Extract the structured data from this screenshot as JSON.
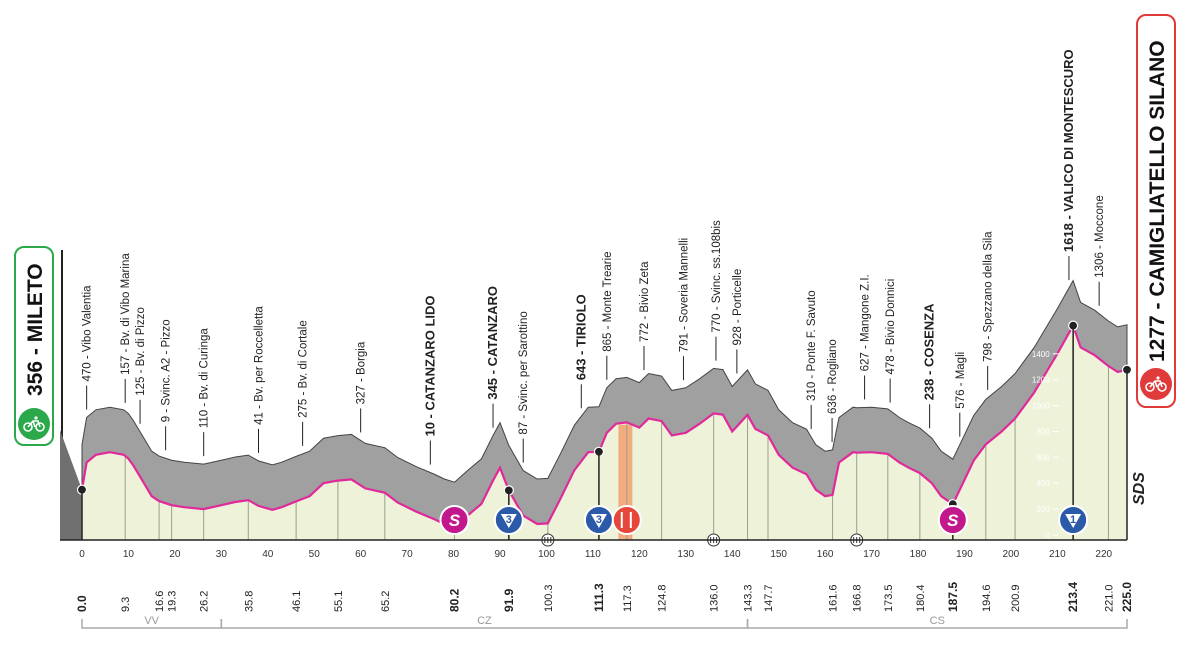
{
  "start": {
    "label": "356 - MILETO",
    "icon": "cyclist-icon"
  },
  "finish": {
    "label": "1277 - CAMIGLIATELLO SILANO",
    "icon": "cyclist-icon"
  },
  "watermark": "SDS",
  "colors": {
    "profile_fill": "#a0a0a0",
    "ground_fill": "#eef2d8",
    "road_line": "#e0299b",
    "sprint": "#c2188b",
    "kom": "#2a5aa8",
    "feed": "#e5483a",
    "feed_zone": "#f2a070",
    "start": "#2aa84a",
    "finish": "#e03a3a"
  },
  "chart_data": {
    "type": "area",
    "title": "",
    "xlabel": "",
    "ylabel": "",
    "xlim": [
      0,
      225
    ],
    "ylim": [
      0,
      1700
    ],
    "profile": [
      [
        0,
        350
      ],
      [
        1,
        560
      ],
      [
        3,
        620
      ],
      [
        6,
        640
      ],
      [
        9,
        620
      ],
      [
        10,
        590
      ],
      [
        11,
        540
      ],
      [
        13,
        420
      ],
      [
        15,
        300
      ],
      [
        16.6,
        262
      ],
      [
        19.3,
        230
      ],
      [
        22,
        215
      ],
      [
        26.2,
        200
      ],
      [
        30,
        230
      ],
      [
        33,
        255
      ],
      [
        35.8,
        270
      ],
      [
        38,
        225
      ],
      [
        41,
        195
      ],
      [
        43,
        215
      ],
      [
        46.1,
        260
      ],
      [
        49,
        300
      ],
      [
        52,
        400
      ],
      [
        55.1,
        420
      ],
      [
        58,
        430
      ],
      [
        61,
        360
      ],
      [
        65.2,
        327
      ],
      [
        68,
        250
      ],
      [
        72,
        180
      ],
      [
        76,
        120
      ],
      [
        78,
        85
      ],
      [
        80.2,
        60
      ],
      [
        83,
        150
      ],
      [
        86,
        240
      ],
      [
        88.5,
        420
      ],
      [
        90,
        520
      ],
      [
        91.9,
        345
      ],
      [
        95,
        150
      ],
      [
        98,
        85
      ],
      [
        100.3,
        90
      ],
      [
        103,
        280
      ],
      [
        106,
        500
      ],
      [
        109,
        640
      ],
      [
        111.3,
        643
      ],
      [
        113,
        790
      ],
      [
        115,
        860
      ],
      [
        117.3,
        870
      ],
      [
        120,
        830
      ],
      [
        122,
        900
      ],
      [
        124.8,
        880
      ],
      [
        127,
        770
      ],
      [
        130,
        790
      ],
      [
        133,
        860
      ],
      [
        136,
        940
      ],
      [
        138,
        930
      ],
      [
        140,
        800
      ],
      [
        143.3,
        928
      ],
      [
        145,
        820
      ],
      [
        147.7,
        770
      ],
      [
        150,
        620
      ],
      [
        153,
        520
      ],
      [
        156,
        470
      ],
      [
        158,
        350
      ],
      [
        160,
        300
      ],
      [
        161.6,
        310
      ],
      [
        163,
        560
      ],
      [
        166,
        640
      ],
      [
        166.8,
        636
      ],
      [
        170,
        640
      ],
      [
        173.5,
        627
      ],
      [
        176,
        560
      ],
      [
        178,
        520
      ],
      [
        180.4,
        478
      ],
      [
        183,
        400
      ],
      [
        185,
        300
      ],
      [
        187.5,
        238
      ],
      [
        189,
        350
      ],
      [
        192,
        576
      ],
      [
        194.6,
        700
      ],
      [
        198,
        800
      ],
      [
        200.9,
        900
      ],
      [
        205,
        1100
      ],
      [
        210,
        1400
      ],
      [
        213.4,
        1618
      ],
      [
        215,
        1450
      ],
      [
        218,
        1390
      ],
      [
        221,
        1306
      ],
      [
        223,
        1260
      ],
      [
        225,
        1277
      ]
    ],
    "x_ticks": [
      0,
      10,
      20,
      30,
      40,
      50,
      60,
      70,
      80,
      90,
      100,
      110,
      120,
      130,
      140,
      150,
      160,
      170,
      180,
      190,
      200,
      210,
      220
    ],
    "y_ticks": [
      0,
      200,
      400,
      600,
      800,
      1000,
      1200,
      1400
    ],
    "km_marks": [
      {
        "km": 0,
        "label": "0.0",
        "bold": true
      },
      {
        "km": 9.3,
        "label": "9.3",
        "bold": false
      },
      {
        "km": 16.6,
        "label": "16.6",
        "bold": false
      },
      {
        "km": 19.3,
        "label": "19.3",
        "bold": false
      },
      {
        "km": 26.2,
        "label": "26.2",
        "bold": false
      },
      {
        "km": 35.8,
        "label": "35.8",
        "bold": false
      },
      {
        "km": 46.1,
        "label": "46.1",
        "bold": false
      },
      {
        "km": 55.1,
        "label": "55.1",
        "bold": false
      },
      {
        "km": 65.2,
        "label": "65.2",
        "bold": false
      },
      {
        "km": 80.2,
        "label": "80.2",
        "bold": true
      },
      {
        "km": 91.9,
        "label": "91.9",
        "bold": true
      },
      {
        "km": 100.3,
        "label": "100.3",
        "bold": false
      },
      {
        "km": 111.3,
        "label": "111.3",
        "bold": true
      },
      {
        "km": 117.3,
        "label": "117.3",
        "bold": false
      },
      {
        "km": 124.8,
        "label": "124.8",
        "bold": false
      },
      {
        "km": 136.0,
        "label": "136.0",
        "bold": false
      },
      {
        "km": 143.3,
        "label": "143.3",
        "bold": false
      },
      {
        "km": 147.7,
        "label": "147.7",
        "bold": false
      },
      {
        "km": 161.6,
        "label": "161.6",
        "bold": false
      },
      {
        "km": 166.8,
        "label": "166.8",
        "bold": false
      },
      {
        "km": 173.5,
        "label": "173.5",
        "bold": false
      },
      {
        "km": 180.4,
        "label": "180.4",
        "bold": false
      },
      {
        "km": 187.5,
        "label": "187.5",
        "bold": true
      },
      {
        "km": 194.6,
        "label": "194.6",
        "bold": false
      },
      {
        "km": 200.9,
        "label": "200.9",
        "bold": false
      },
      {
        "km": 213.4,
        "label": "213.4",
        "bold": true
      },
      {
        "km": 221.0,
        "label": "221.0",
        "bold": false
      },
      {
        "km": 225.0,
        "label": "225.0",
        "bold": true
      }
    ],
    "places": [
      {
        "km": 1,
        "alt": 470,
        "label": "470 - Vibo Valentia",
        "bold": false
      },
      {
        "km": 9.3,
        "alt": 157,
        "label": "157 - Bv. di Vibo Marina",
        "bold": false
      },
      {
        "km": 12.5,
        "alt": 125,
        "label": "125 - Bv. di Pizzo",
        "bold": false
      },
      {
        "km": 18,
        "alt": 9,
        "label": "9 - Svinc. A2 - Pizzo",
        "bold": false
      },
      {
        "km": 26.2,
        "alt": 110,
        "label": "110 - Bv. di Curinga",
        "bold": false
      },
      {
        "km": 38,
        "alt": 41,
        "label": "41 - Bv. per Roccelletta",
        "bold": false
      },
      {
        "km": 47.5,
        "alt": 275,
        "label": "275 - Bv. di Cortale",
        "bold": false
      },
      {
        "km": 60,
        "alt": 327,
        "label": "327 - Borgia",
        "bold": false
      },
      {
        "km": 75,
        "alt": 10,
        "label": "10 - CATANZARO LIDO",
        "bold": true
      },
      {
        "km": 88.5,
        "alt": 345,
        "label": "345 - CATANZARO",
        "bold": true
      },
      {
        "km": 95,
        "alt": 87,
        "label": "87 - Svinc. per Sarottino",
        "bold": false
      },
      {
        "km": 107.5,
        "alt": 643,
        "label": "643 - TIRIOLO",
        "bold": true
      },
      {
        "km": 113,
        "alt": 865,
        "label": "865 - Monte Trearie",
        "bold": false
      },
      {
        "km": 121,
        "alt": 772,
        "label": "772 - Bivio Zeta",
        "bold": false
      },
      {
        "km": 129.5,
        "alt": 791,
        "label": "791 - Soveria Mannelli",
        "bold": false
      },
      {
        "km": 136.5,
        "alt": 770,
        "label": "770 - Svinc. ss.108bis",
        "bold": false
      },
      {
        "km": 141,
        "alt": 928,
        "label": "928 - Porticelle",
        "bold": false
      },
      {
        "km": 157,
        "alt": 310,
        "label": "310 - Ponte F. Savuto",
        "bold": false
      },
      {
        "km": 161.5,
        "alt": 636,
        "label": "636 - Rogliano",
        "bold": false
      },
      {
        "km": 168.5,
        "alt": 627,
        "label": "627 - Mangone Z.I.",
        "bold": false
      },
      {
        "km": 174,
        "alt": 478,
        "label": "478 - Bivio Donnici",
        "bold": false
      },
      {
        "km": 182.5,
        "alt": 238,
        "label": "238 - COSENZA",
        "bold": true
      },
      {
        "km": 189,
        "alt": 576,
        "label": "576 - Magli",
        "bold": false
      },
      {
        "km": 195,
        "alt": 798,
        "label": "798 - Spezzano della Sila",
        "bold": false
      },
      {
        "km": 212.5,
        "alt": 1618,
        "label": "1618 - VALICO DI MONTESCURO",
        "bold": true
      },
      {
        "km": 219,
        "alt": 1306,
        "label": "1306 - Moccone",
        "bold": false
      }
    ],
    "markers": [
      {
        "km": 80.2,
        "type": "sprint",
        "text": "S",
        "icon": "sprint-badge-icon"
      },
      {
        "km": 91.9,
        "type": "kom",
        "text": "3",
        "icon": "kom-badge-icon"
      },
      {
        "km": 111.3,
        "type": "kom",
        "text": "3",
        "icon": "kom-badge-icon"
      },
      {
        "km": 117.3,
        "type": "feed",
        "text": "",
        "icon": "feed-zone-icon"
      },
      {
        "km": 187.5,
        "type": "sprint",
        "text": "S",
        "icon": "sprint-badge-icon"
      },
      {
        "km": 213.4,
        "type": "kom",
        "text": "1",
        "icon": "kom-badge-icon"
      }
    ],
    "climb_points": [
      0,
      91.9,
      111.3,
      187.5,
      213.4,
      225.0
    ],
    "feed_zone": [
      115.5,
      118.5
    ],
    "small_icons": [
      {
        "km": 100.3,
        "icon": "tunnel-icon"
      },
      {
        "km": 136.0,
        "icon": "railway-crossing-icon"
      },
      {
        "km": 166.8,
        "icon": "railway-crossing-icon"
      }
    ],
    "provinces": [
      {
        "from": 0,
        "to": 30,
        "label": "VV"
      },
      {
        "from": 30,
        "to": 143.3,
        "label": "CZ"
      },
      {
        "from": 143.3,
        "to": 225,
        "label": "CS"
      }
    ]
  }
}
